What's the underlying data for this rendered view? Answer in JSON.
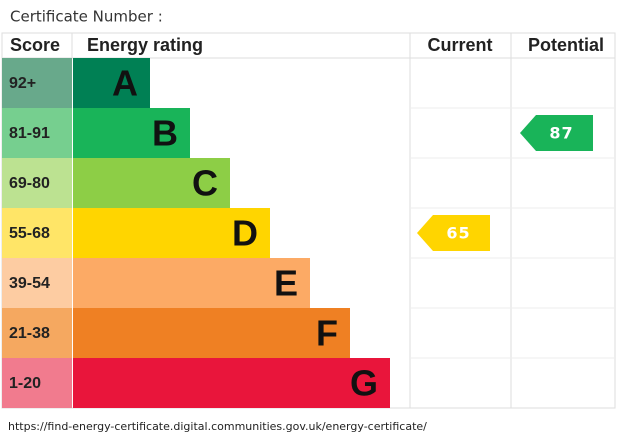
{
  "header": {
    "title": "Certificate Number :"
  },
  "columns": {
    "score": "Score",
    "rating": "Energy rating",
    "current": "Current",
    "potential": "Potential"
  },
  "bands": [
    {
      "score": "92+",
      "letter": "A",
      "color": "#008054",
      "score_color": "#68a98b"
    },
    {
      "score": "81-91",
      "letter": "B",
      "color": "#19b459",
      "score_color": "#76cf8f"
    },
    {
      "score": "69-80",
      "letter": "C",
      "color": "#8dce46",
      "score_color": "#bce291"
    },
    {
      "score": "55-68",
      "letter": "D",
      "color": "#ffd500",
      "score_color": "#ffe567"
    },
    {
      "score": "39-54",
      "letter": "E",
      "color": "#fcaa65",
      "score_color": "#fdcca2"
    },
    {
      "score": "21-38",
      "letter": "F",
      "color": "#ef8023",
      "score_color": "#f5a860"
    },
    {
      "score": "1-20",
      "letter": "G",
      "color": "#e9153b",
      "score_color": "#f17b8e"
    }
  ],
  "current": 65,
  "potential": 87,
  "footer": {
    "url": "https://find-energy-certificate.digital.communities.gov.uk/energy-certificate/"
  }
}
